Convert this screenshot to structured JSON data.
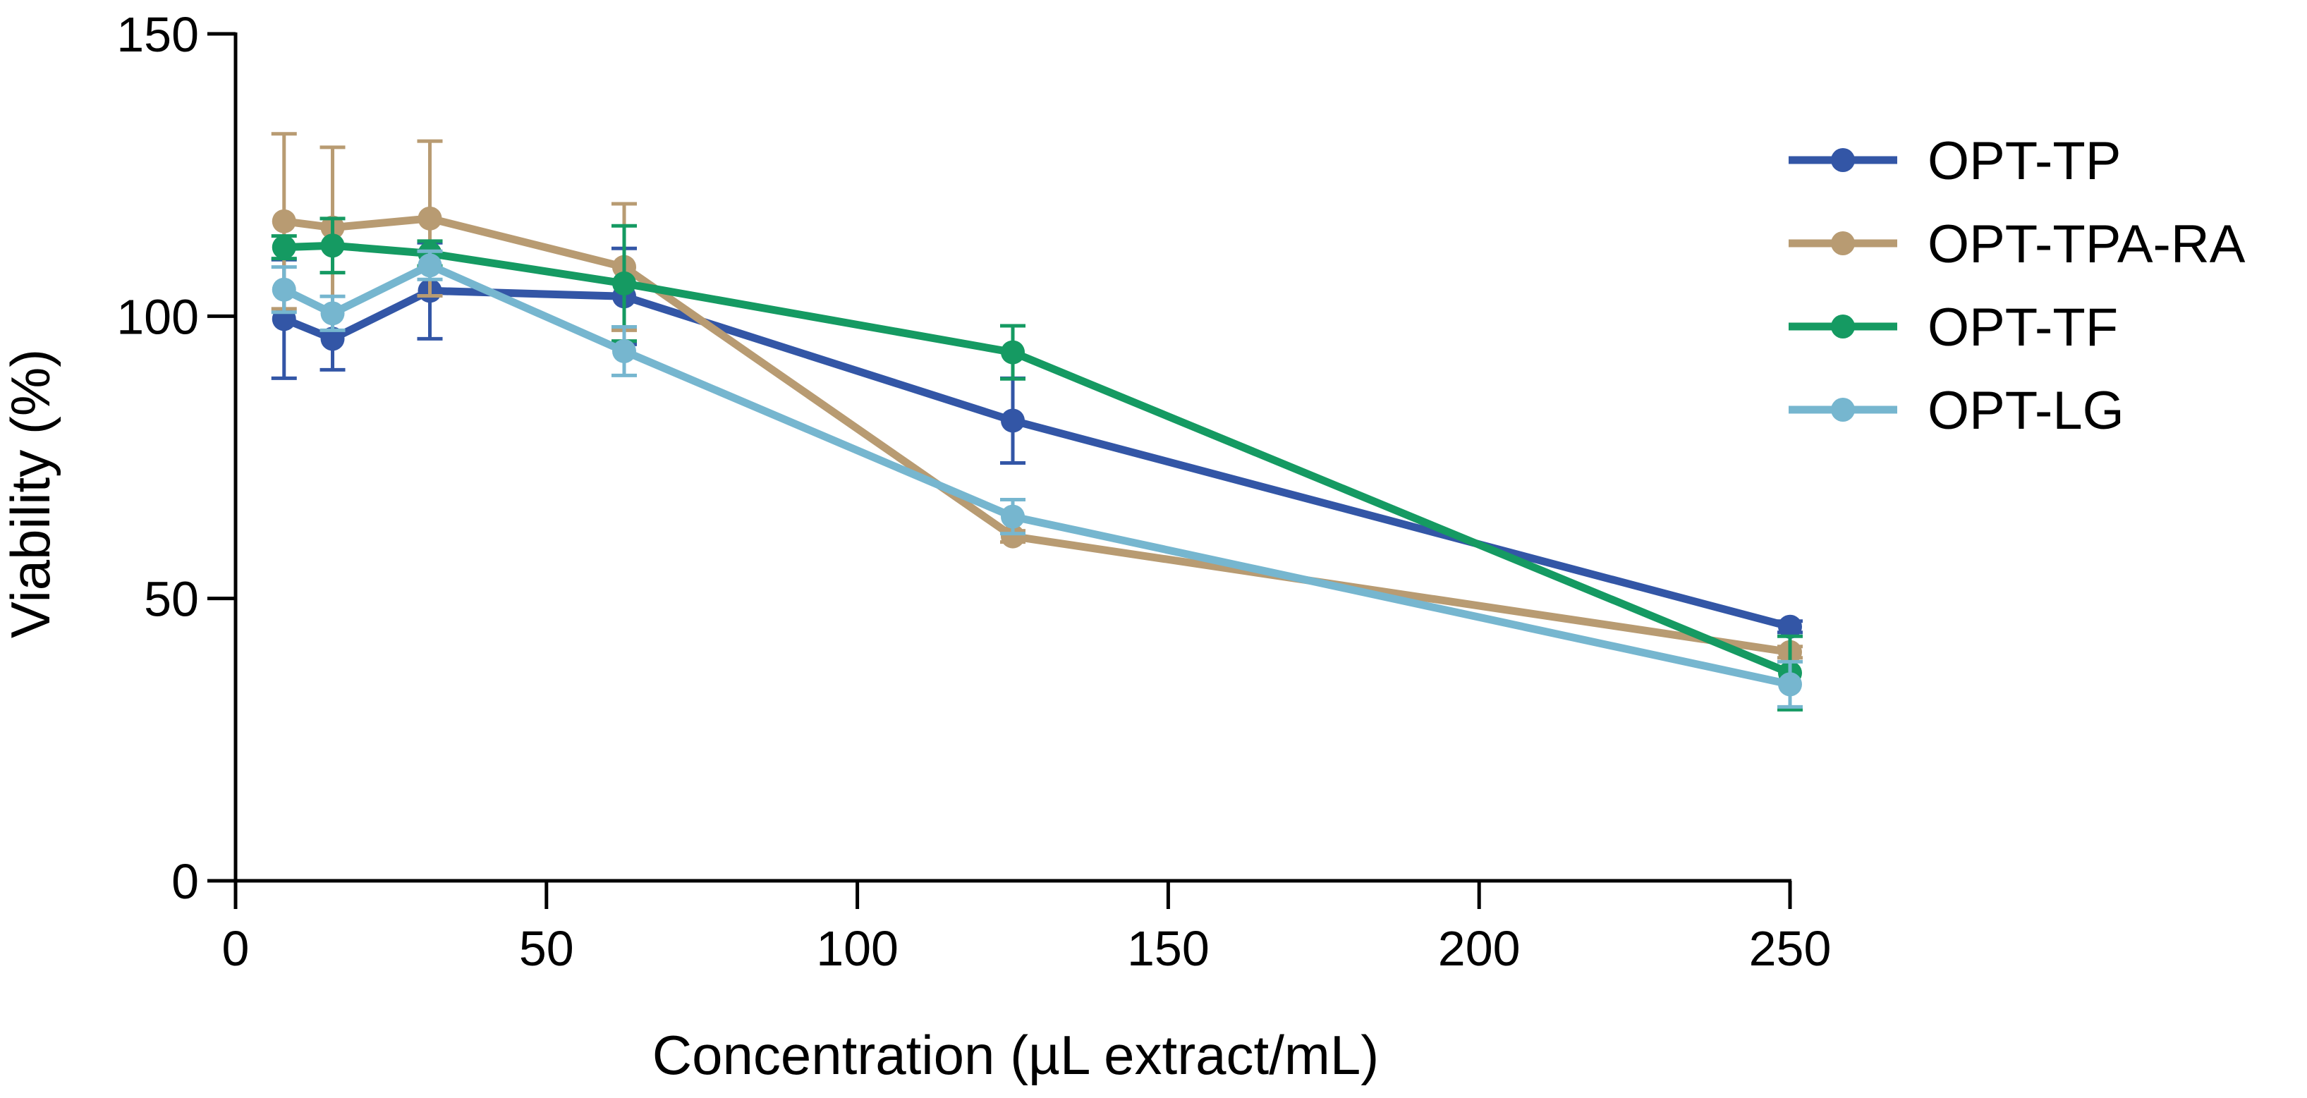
{
  "chart_data": {
    "type": "line",
    "title": "",
    "xlabel": "Concentration (µL extract/mL)",
    "ylabel": "Viability (%)",
    "xlim": [
      0,
      250
    ],
    "ylim": [
      0,
      150
    ],
    "xticks": [
      0,
      50,
      100,
      150,
      200,
      250
    ],
    "yticks": [
      0,
      50,
      100,
      150
    ],
    "x": [
      7.8,
      15.6,
      31.25,
      62.5,
      125,
      250
    ],
    "grid": false,
    "legend_position": "top-right",
    "series": [
      {
        "name": "OPT-TP",
        "color": "#3356a6",
        "values": [
          99.5,
          96,
          104.5,
          103.5,
          81.5,
          45
        ],
        "error": [
          10.5,
          5.5,
          8.5,
          8.5,
          7.5,
          1
        ]
      },
      {
        "name": "OPT-TPA-RA",
        "color": "#b89b72",
        "values": [
          116.8,
          115.7,
          117.3,
          108.7,
          61,
          40.5
        ],
        "error": [
          15.5,
          14.2,
          13.7,
          11.2,
          1,
          1
        ]
      },
      {
        "name": "OPT-TF",
        "color": "#159a62",
        "values": [
          112.2,
          112.5,
          111.1,
          105.8,
          93.6,
          36.8
        ],
        "error": [
          2,
          4.8,
          2.2,
          10.2,
          4.7,
          6.5
        ]
      },
      {
        "name": "OPT-LG",
        "color": "#76b6cf",
        "values": [
          104.7,
          100.5,
          109,
          93.8,
          64.5,
          34.8
        ],
        "error": [
          4,
          3,
          2.5,
          4.3,
          3,
          4
        ]
      }
    ]
  }
}
